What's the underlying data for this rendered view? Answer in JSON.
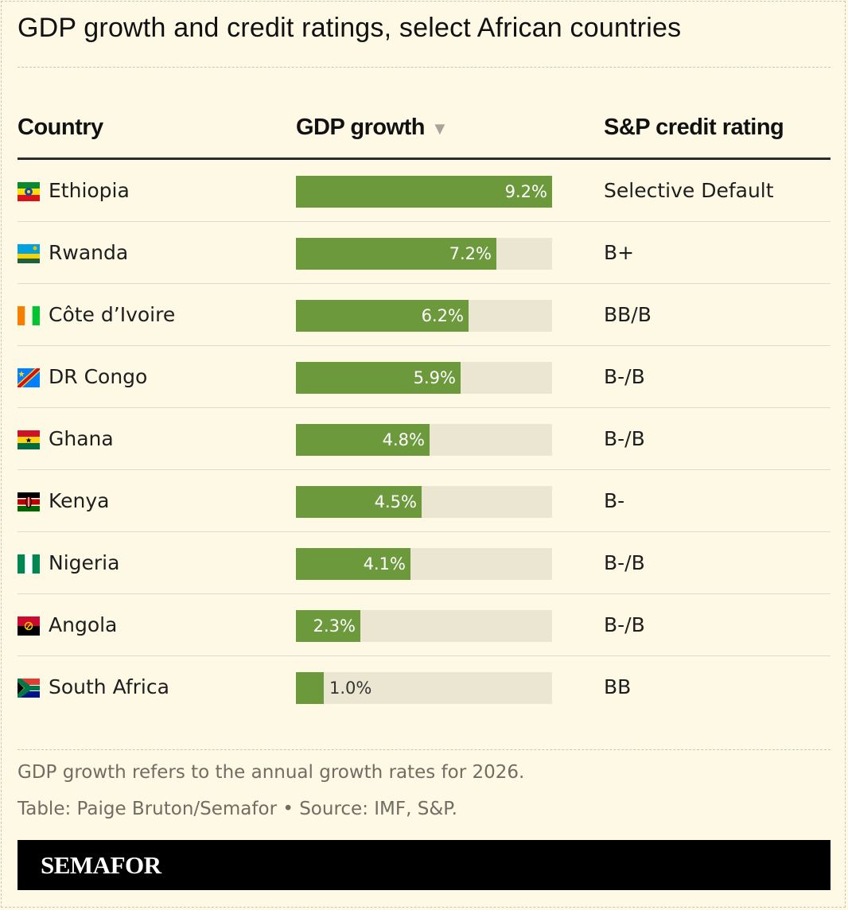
{
  "title": "GDP growth and credit ratings, select African countries",
  "columns": {
    "country": "Country",
    "gdp": "GDP growth",
    "sort_indicator": "▼",
    "rating": "S&P credit rating"
  },
  "chart_data": {
    "type": "table",
    "columns": [
      "Country",
      "GDP growth",
      "S&P credit rating"
    ],
    "max_value": 9.2,
    "rows": [
      {
        "country": "Ethiopia",
        "flag": "ethiopia-flag-icon",
        "gdp": 9.2,
        "gdp_label": "9.2%",
        "rating": "Selective Default"
      },
      {
        "country": "Rwanda",
        "flag": "rwanda-flag-icon",
        "gdp": 7.2,
        "gdp_label": "7.2%",
        "rating": "B+"
      },
      {
        "country": "Côte d’Ivoire",
        "flag": "cote-divoire-flag-icon",
        "gdp": 6.2,
        "gdp_label": "6.2%",
        "rating": "BB/B"
      },
      {
        "country": "DR Congo",
        "flag": "dr-congo-flag-icon",
        "gdp": 5.9,
        "gdp_label": "5.9%",
        "rating": "B-/B"
      },
      {
        "country": "Ghana",
        "flag": "ghana-flag-icon",
        "gdp": 4.8,
        "gdp_label": "4.8%",
        "rating": "B-/B"
      },
      {
        "country": "Kenya",
        "flag": "kenya-flag-icon",
        "gdp": 4.5,
        "gdp_label": "4.5%",
        "rating": "B-"
      },
      {
        "country": "Nigeria",
        "flag": "nigeria-flag-icon",
        "gdp": 4.1,
        "gdp_label": "4.1%",
        "rating": "B-/B"
      },
      {
        "country": "Angola",
        "flag": "angola-flag-icon",
        "gdp": 2.3,
        "gdp_label": "2.3%",
        "rating": "B-/B"
      },
      {
        "country": "South Africa",
        "flag": "south-africa-flag-icon",
        "gdp": 1.0,
        "gdp_label": "1.0%",
        "rating": "BB"
      }
    ]
  },
  "colors": {
    "bar": "#6c993c",
    "track": "#eae6d2",
    "background": "#fdf9e5"
  },
  "footnote": "GDP growth refers to the annual growth rates for 2026.",
  "source": "Table: Paige Bruton/Semafor • Source: IMF, S&P.",
  "brand": "SEMAFOR"
}
